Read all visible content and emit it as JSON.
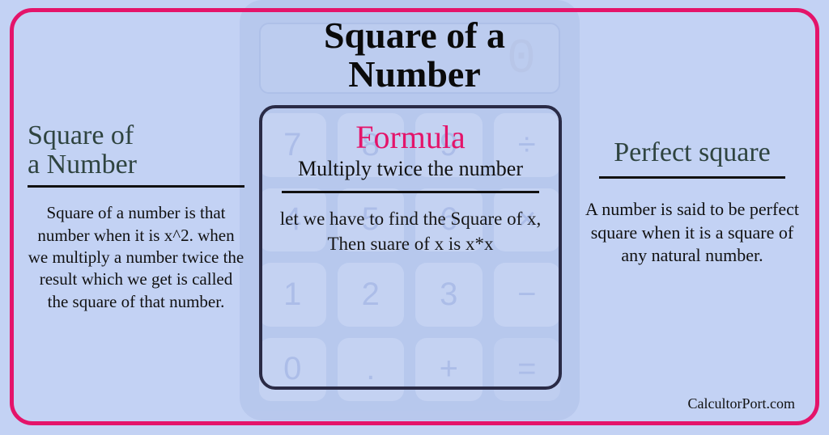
{
  "colors": {
    "background": "#c3d2f4",
    "border": "#e4146a",
    "calc_bg": "#afc0e8",
    "heading_dark": "#2f4440",
    "text": "#111111",
    "formula_accent": "#e4146a",
    "box_border": "#2a2b46"
  },
  "main_title": "Square of a\nNumber",
  "left": {
    "heading": "Square of\na Number",
    "body": "Square of a number is that number when it is x^2. when we multiply a number twice the result which we get is called the square of that number."
  },
  "center": {
    "heading": "Formula",
    "subtitle": "Multiply twice the number",
    "body": "let we have to find the Square of x,\nThen suare of x is x*x"
  },
  "right": {
    "heading": "Perfect square",
    "body": "A number is  said to be perfect square when it is a square of any natural number."
  },
  "watermark": "CalcultorPort.com",
  "calculator": {
    "screen_value": "0",
    "keys": [
      "7",
      "8",
      "9",
      "÷",
      "4",
      "5",
      "6",
      "×",
      "1",
      "2",
      "3",
      "−",
      "0",
      ".",
      "+",
      "="
    ]
  },
  "typography": {
    "main_title_fontsize": 46,
    "section_heading_fontsize": 34,
    "body_fontsize": 21,
    "formula_heading_fontsize": 40
  }
}
